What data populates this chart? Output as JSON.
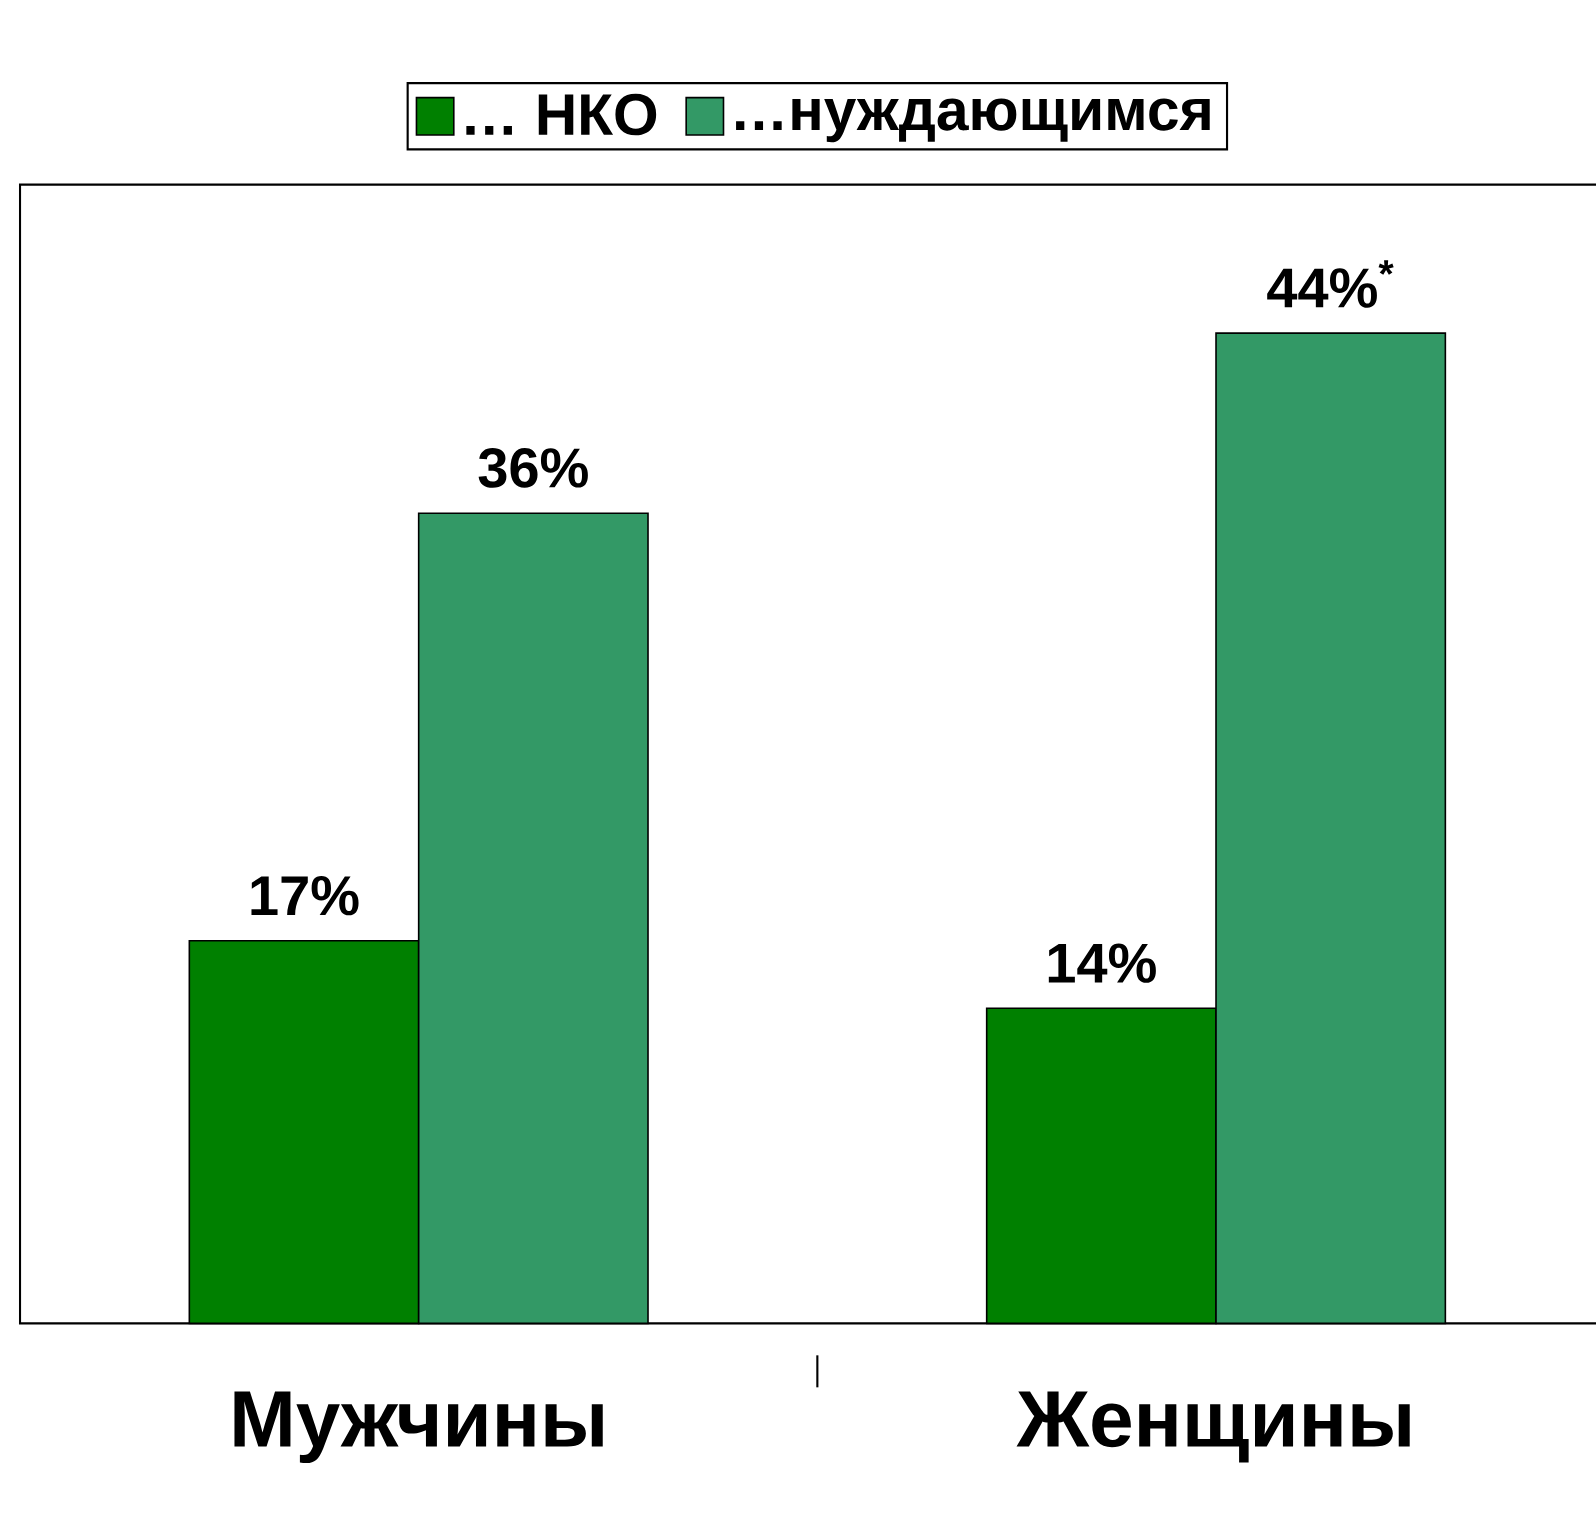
{
  "chart_data": {
    "type": "bar",
    "categories": [
      "Мужчины",
      "Женщины"
    ],
    "series": [
      {
        "name": "… НКО",
        "color": "#008000",
        "values": [
          17,
          14
        ],
        "value_labels": [
          "17%",
          "14%"
        ]
      },
      {
        "name": "…нуждающимся",
        "color": "#339966",
        "values": [
          36,
          44
        ],
        "value_labels": [
          "36%",
          "44%$^{*}$"
        ]
      }
    ],
    "legend": "top"
  }
}
